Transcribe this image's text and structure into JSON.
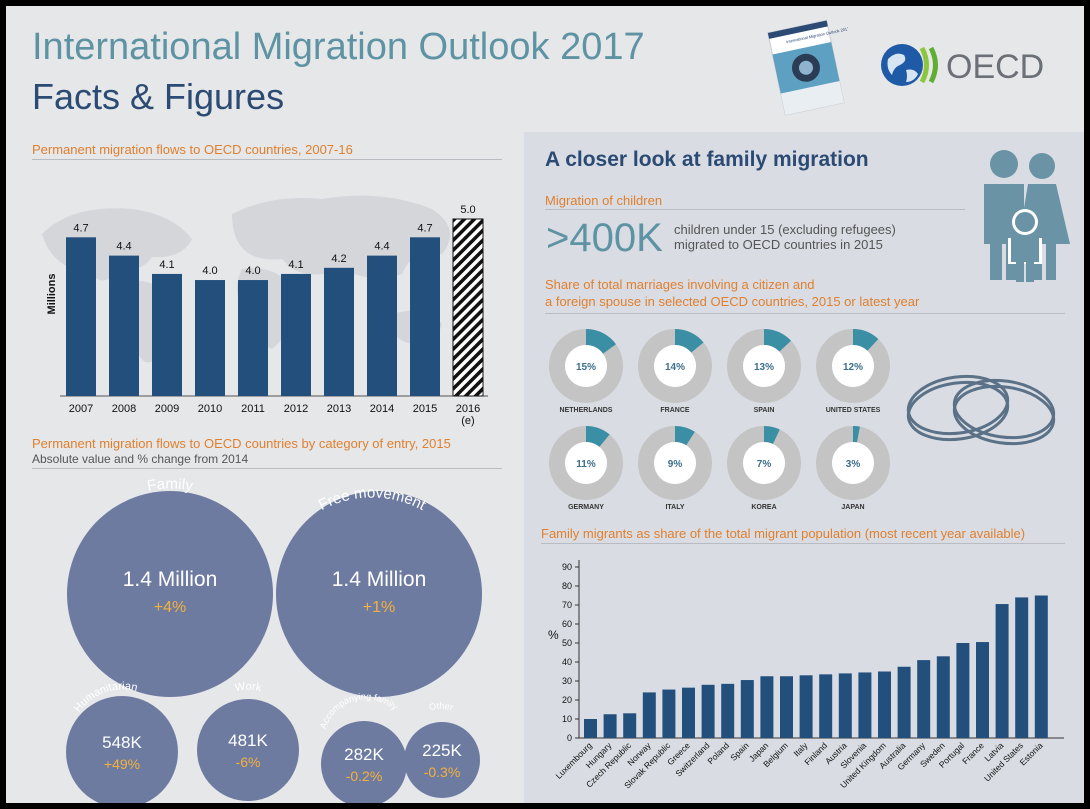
{
  "header": {
    "title": "International Migration Outlook 2017",
    "subtitle": "Facts & Figures",
    "oecd_logo_text": "OECD",
    "cover_text": "International Migration Outlook 2017"
  },
  "colors": {
    "bar": "#234f7d",
    "bubble": "#6e7ba1",
    "donut_fill": "#3b8fa5",
    "donut_track": "#c4c4c4",
    "orange": "#e07f2e",
    "teal": "#5e93a4",
    "navy": "#2b4a74",
    "icon": "#6a93a6"
  },
  "sections": {
    "flows_title": "Permanent migration flows to OECD countries, 2007-16",
    "category_title": "Permanent migration flows to OECD countries by category of entry, 2015",
    "category_subtitle": "Absolute value and % change from 2014",
    "family_title": "A closer look at family migration",
    "children_title": "Migration of children",
    "marriage_title_1": "Share of total marriages involving a citizen and",
    "marriage_title_2": "a foreign spouse in selected OECD countries, 2015 or latest year",
    "share_title": "Family migrants as share of the total migrant population (most recent year available)"
  },
  "children": {
    "big_number": ">400K",
    "line1": "children under 15 (excluding refugees)",
    "line2": "migrated to OECD countries in 2015"
  },
  "chart_data": [
    {
      "type": "bar",
      "title": "Permanent migration flows to OECD countries, 2007-16",
      "ylabel": "Millions",
      "categories": [
        "2007",
        "2008",
        "2009",
        "2010",
        "2011",
        "2012",
        "2013",
        "2014",
        "2015",
        "2016\n(e)"
      ],
      "values": [
        4.7,
        4.4,
        4.1,
        4.0,
        4.0,
        4.1,
        4.2,
        4.4,
        4.7,
        5.0
      ],
      "value_labels": [
        "4.7",
        "4.4",
        "4.1",
        "4.0",
        "4.0",
        "4.1",
        "4.2",
        "4.4",
        "4.7",
        "5.0"
      ],
      "estimated": [
        false,
        false,
        false,
        false,
        false,
        false,
        false,
        false,
        false,
        true
      ],
      "ylim": [
        2.1,
        5.0
      ]
    },
    {
      "type": "bubble",
      "title": "Permanent migration flows to OECD countries by category of entry, 2015",
      "items": [
        {
          "name": "Family",
          "value_label": "1.4 Million",
          "change": "+4%"
        },
        {
          "name": "Free movement",
          "value_label": "1.4 Million",
          "change": "+1%"
        },
        {
          "name": "Humanitarian",
          "value_label": "548K",
          "change": "+49%"
        },
        {
          "name": "Work",
          "value_label": "481K",
          "change": "-6%"
        },
        {
          "name": "Accompanying family",
          "value_label": "282K",
          "change": "-0.2%"
        },
        {
          "name": "Other",
          "value_label": "225K",
          "change": "-0.3%"
        }
      ]
    },
    {
      "type": "pie",
      "title": "Share of total marriages involving a citizen and a foreign spouse in selected OECD countries, 2015 or latest year",
      "items": [
        {
          "country": "NETHERLANDS",
          "value": 15,
          "label": "15%"
        },
        {
          "country": "FRANCE",
          "value": 14,
          "label": "14%"
        },
        {
          "country": "SPAIN",
          "value": 13,
          "label": "13%"
        },
        {
          "country": "UNITED STATES",
          "value": 12,
          "label": "12%"
        },
        {
          "country": "GERMANY",
          "value": 11,
          "label": "11%"
        },
        {
          "country": "ITALY",
          "value": 9,
          "label": "9%"
        },
        {
          "country": "KOREA",
          "value": 7,
          "label": "7%"
        },
        {
          "country": "JAPAN",
          "value": 3,
          "label": "3%"
        }
      ]
    },
    {
      "type": "bar",
      "title": "Family migrants as share of the total migrant population (most recent year available)",
      "ylabel": "%",
      "ylim": [
        0,
        90
      ],
      "yticks": [
        0,
        10,
        20,
        30,
        40,
        50,
        60,
        70,
        80,
        90
      ],
      "categories": [
        "Luxembourg",
        "Hungary",
        "Czech Republic",
        "Norway",
        "Slovak Republic",
        "Greece",
        "Switzerland",
        "Poland",
        "Spain",
        "Japan",
        "Belgium",
        "Italy",
        "Finland",
        "Austria",
        "Slovenia",
        "United Kingdom",
        "Australia",
        "Germany",
        "Sweden",
        "Portugal",
        "France",
        "Latvia",
        "United States",
        "Estonia"
      ],
      "values": [
        10,
        12.5,
        13,
        24,
        25.5,
        26.5,
        28,
        28.5,
        30.5,
        32.5,
        32.5,
        33,
        33.5,
        34,
        34.5,
        35,
        37.5,
        41,
        43,
        50,
        50.5,
        70.5,
        74,
        75
      ]
    }
  ]
}
